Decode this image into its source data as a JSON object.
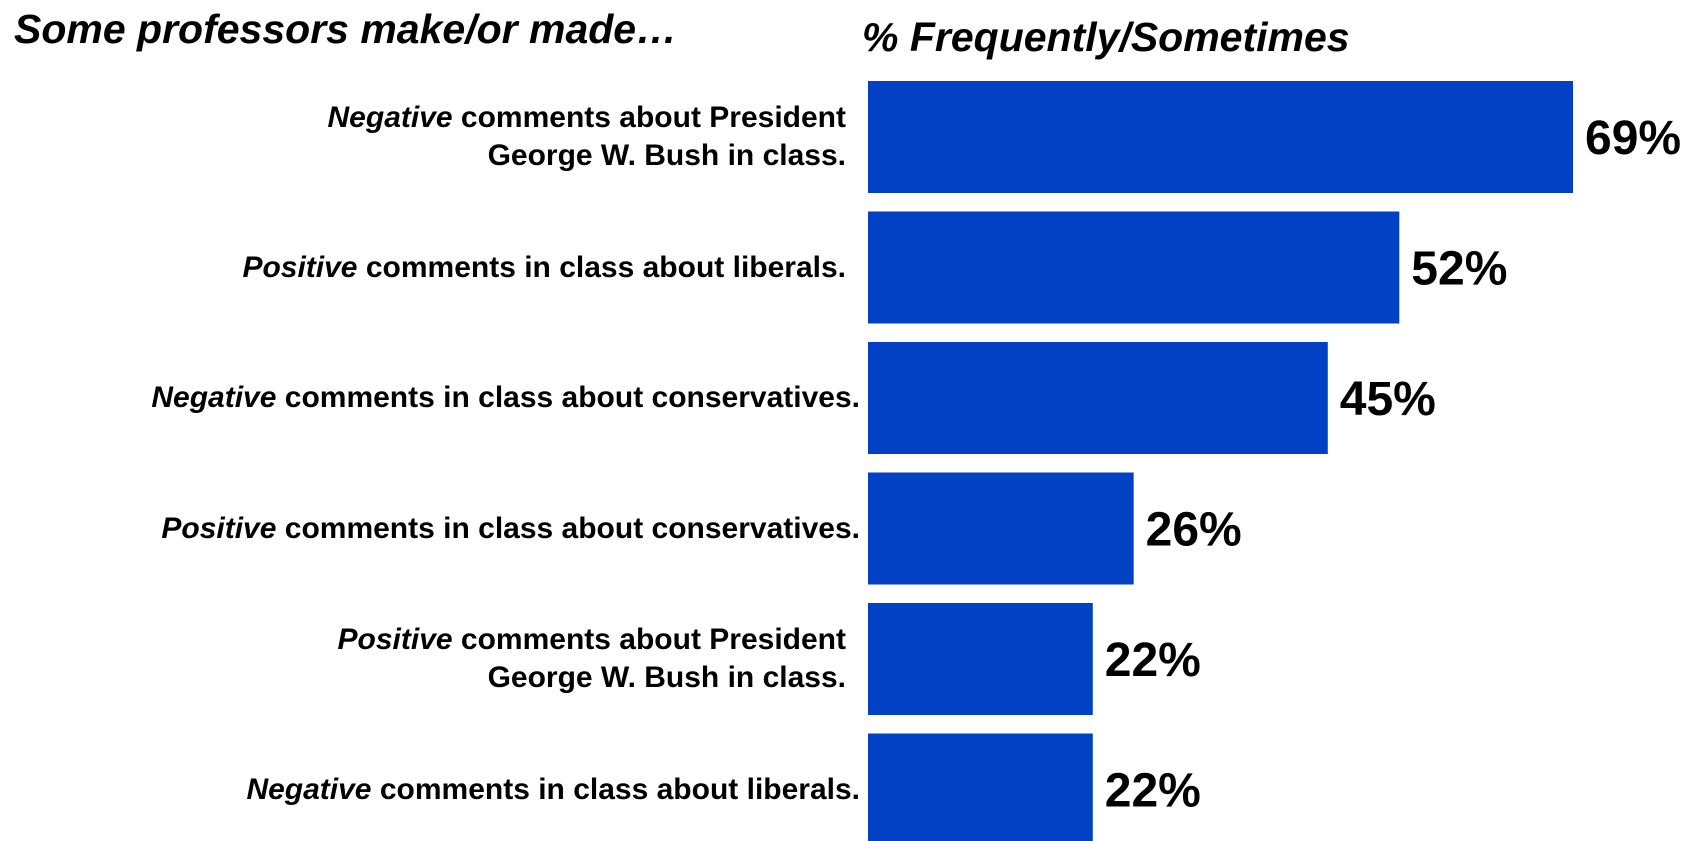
{
  "header": {
    "left_title": "Some professors make/or made…",
    "right_title": "% Frequently/Sometimes"
  },
  "colors": {
    "bar": "#0241C4",
    "text": "#000000"
  },
  "chart_data": {
    "type": "bar",
    "orientation": "horizontal",
    "title": "% Frequently/Sometimes",
    "categories": [
      "Negative comments about President George W. Bush in class.",
      "Positive comments in class about liberals.",
      "Negative comments in class about conservatives.",
      "Positive comments in class about conservatives.",
      "Positive comments about President George W. Bush in class.",
      "Negative comments in class about liberals."
    ],
    "category_lines": [
      [
        {
          "em": "Negative",
          "rest": " comments about President"
        },
        {
          "em": "",
          "rest": "George W. Bush in class."
        }
      ],
      [
        {
          "em": "Positive",
          "rest": " comments in class about liberals."
        }
      ],
      [
        {
          "em": "Negative",
          "rest": " comments in class about conservatives."
        }
      ],
      [
        {
          "em": "Positive",
          "rest": " comments in class about conservatives."
        }
      ],
      [
        {
          "em": "Positive",
          "rest": " comments about President"
        },
        {
          "em": "",
          "rest": "George W. Bush in class."
        }
      ],
      [
        {
          "em": "Negative",
          "rest": " comments in class about liberals."
        }
      ]
    ],
    "values": [
      69,
      52,
      45,
      26,
      22,
      22
    ],
    "value_labels": [
      "69%",
      "52%",
      "45%",
      "26%",
      "22%",
      "22%"
    ],
    "xlim": [
      0,
      69
    ],
    "grid": false,
    "legend": "none"
  }
}
